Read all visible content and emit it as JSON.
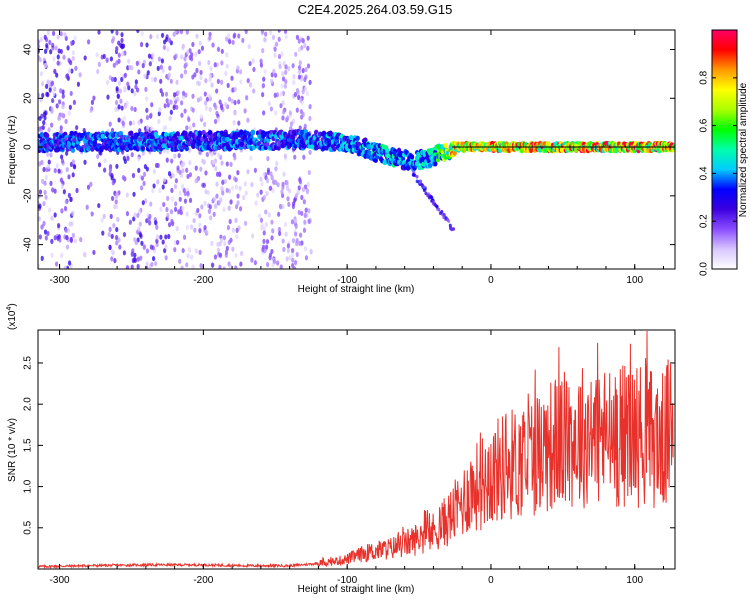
{
  "title": "C2E4.2025.264.03.59.G15",
  "colors": {
    "snr_line": "#e8312a",
    "centre_line": "#000000"
  },
  "chart_data": [
    {
      "type": "heatmap",
      "xlabel": "Height of straight line (km)",
      "ylabel": "Frequency (Hz)",
      "xlim": [
        -315,
        128
      ],
      "ylim": [
        -50,
        48
      ],
      "xticks": [
        -300,
        -200,
        -100,
        0,
        100
      ],
      "yticks": [
        -40,
        -20,
        0,
        20,
        40
      ],
      "colorbar": {
        "label": "Normalized spectral amplitude",
        "range": [
          0,
          1
        ],
        "ticks": [
          0.0,
          0.2,
          0.4,
          0.6,
          0.8
        ],
        "colormap": [
          "#ffffff",
          "#d8c6ff",
          "#8a4dff",
          "#3c00e0",
          "#0000ff",
          "#00ccff",
          "#00ffaa",
          "#00ff00",
          "#aaff00",
          "#ffff00",
          "#ff9900",
          "#ff0000",
          "#ff0066"
        ],
        "placement": "right"
      },
      "trend": [
        {
          "x": -315,
          "freq": 2,
          "amplitude": 0.35
        },
        {
          "x": -130,
          "freq": 3,
          "amplitude": 0.35
        },
        {
          "x": -100,
          "freq": 2,
          "amplitude": 0.4
        },
        {
          "x": -75,
          "freq": -3,
          "amplitude": 0.45
        },
        {
          "x": -55,
          "freq": -6,
          "amplitude": 0.4
        },
        {
          "x": -40,
          "freq": -4,
          "amplitude": 0.45
        },
        {
          "x": -25,
          "freq": 0,
          "amplitude": 0.75
        },
        {
          "x": 128,
          "freq": 0,
          "amplitude": 0.85
        }
      ],
      "centre_line_x": [
        -27,
        128
      ]
    },
    {
      "type": "line",
      "xlabel": "Height of straight line (km)",
      "ylabel": "SNR (10 * v/v)",
      "yscale_label": "(x10",
      "yscale_exponent": "4",
      "xlim": [
        -315,
        128
      ],
      "ylim": [
        0,
        2.9
      ],
      "xticks": [
        -300,
        -200,
        -100,
        0,
        100
      ],
      "yticks": [
        0.5,
        1.0,
        1.5,
        2.0,
        2.5
      ],
      "series": [
        {
          "x": [
            -315,
            -280,
            -240,
            -200,
            -170,
            -140,
            -125,
            -110,
            -100,
            -90,
            -80,
            -70,
            -60,
            -50,
            -40,
            -30,
            -20,
            -15,
            -10,
            0,
            10,
            20,
            30,
            40,
            50,
            60,
            70,
            80,
            90,
            100,
            110,
            120,
            125
          ],
          "values": [
            0.03,
            0.04,
            0.05,
            0.05,
            0.04,
            0.04,
            0.06,
            0.09,
            0.12,
            0.18,
            0.22,
            0.25,
            0.3,
            0.38,
            0.45,
            0.6,
            0.8,
            0.95,
            1.0,
            1.15,
            1.25,
            1.3,
            1.4,
            1.5,
            1.55,
            1.6,
            1.65,
            1.6,
            1.62,
            1.65,
            1.6,
            1.55,
            1.7
          ]
        }
      ]
    }
  ]
}
